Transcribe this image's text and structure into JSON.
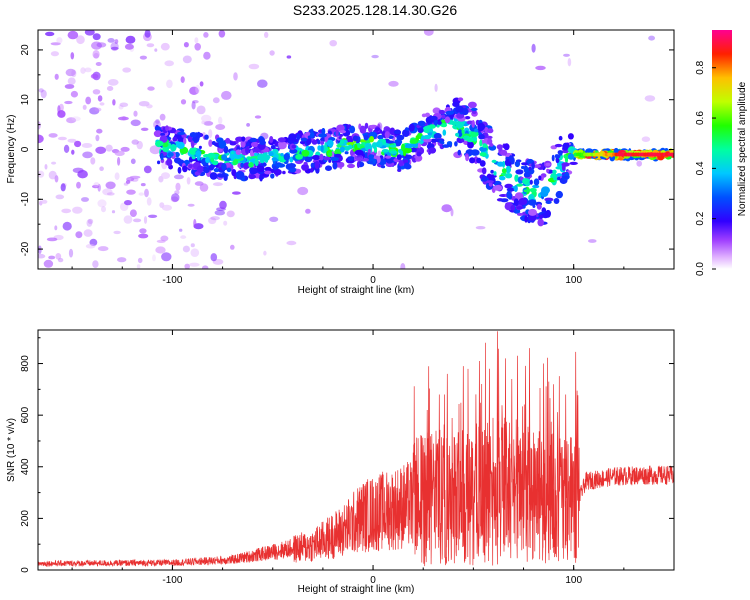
{
  "title": "S233.2025.128.14.30.G26",
  "chart_data": [
    {
      "type": "heatmap",
      "xlabel": "Height of straight line (km)",
      "ylabel": "Frequency (Hz)",
      "xlim": [
        -167,
        150
      ],
      "ylim": [
        -24,
        24
      ],
      "xticks": [
        "-100",
        "0",
        "100"
      ],
      "yticks": [
        "20",
        "10",
        "0",
        "-10",
        "-20"
      ],
      "colorbar": {
        "label": "Normalized spectral amplitude",
        "range": [
          0,
          0.95
        ],
        "ticks": [
          "0.0",
          "0.2",
          "0.4",
          "0.6",
          "0.8"
        ],
        "colors": [
          "#ffffff",
          "#d080ff",
          "#7000ff",
          "#0000ff",
          "#00a0ff",
          "#00ffd0",
          "#00ff00",
          "#a0ff00",
          "#ffff00",
          "#ffa000",
          "#ff0000",
          "#ff00a0"
        ]
      },
      "ridge": [
        {
          "x": -105,
          "y": 0.5
        },
        {
          "x": -80,
          "y": -1.5
        },
        {
          "x": -60,
          "y": -2
        },
        {
          "x": -40,
          "y": -1
        },
        {
          "x": -25,
          "y": 0
        },
        {
          "x": -15,
          "y": 0.5
        },
        {
          "x": 0,
          "y": 1
        },
        {
          "x": 15,
          "y": -0.5
        },
        {
          "x": 25,
          "y": 3
        },
        {
          "x": 40,
          "y": 5
        },
        {
          "x": 50,
          "y": 3
        },
        {
          "x": 60,
          "y": -3
        },
        {
          "x": 75,
          "y": -8
        },
        {
          "x": 85,
          "y": -9
        },
        {
          "x": 95,
          "y": -2
        },
        {
          "x": 100,
          "y": -1
        },
        {
          "x": 150,
          "y": -1
        }
      ]
    },
    {
      "type": "line",
      "xlabel": "Height of straight line (km)",
      "ylabel": "SNR (10 * v/v)",
      "xlim": [
        -167,
        150
      ],
      "ylim": [
        0,
        930
      ],
      "xticks": [
        "-100",
        "0",
        "100"
      ],
      "yticks": [
        "0",
        "200",
        "400",
        "600",
        "800"
      ],
      "color": "#e83030",
      "envelope": [
        {
          "x": -167,
          "y": 25
        },
        {
          "x": -100,
          "y": 28
        },
        {
          "x": -70,
          "y": 40
        },
        {
          "x": -50,
          "y": 70
        },
        {
          "x": -30,
          "y": 100
        },
        {
          "x": -15,
          "y": 160
        },
        {
          "x": -5,
          "y": 220
        },
        {
          "x": 5,
          "y": 240
        },
        {
          "x": 15,
          "y": 260
        },
        {
          "x": 25,
          "y": 280
        },
        {
          "x": 35,
          "y": 290
        },
        {
          "x": 50,
          "y": 300
        },
        {
          "x": 65,
          "y": 320
        },
        {
          "x": 80,
          "y": 290
        },
        {
          "x": 95,
          "y": 280
        },
        {
          "x": 102,
          "y": 270
        },
        {
          "x": 106,
          "y": 350
        },
        {
          "x": 120,
          "y": 370
        },
        {
          "x": 135,
          "y": 375
        },
        {
          "x": 150,
          "y": 375
        }
      ],
      "peaks": [
        {
          "x": 27,
          "y": 620
        },
        {
          "x": 33,
          "y": 680
        },
        {
          "x": 37,
          "y": 760
        },
        {
          "x": 45,
          "y": 790
        },
        {
          "x": 53,
          "y": 810
        },
        {
          "x": 58,
          "y": 780
        },
        {
          "x": 62,
          "y": 925
        },
        {
          "x": 66,
          "y": 820
        },
        {
          "x": 72,
          "y": 830
        },
        {
          "x": 78,
          "y": 860
        },
        {
          "x": 85,
          "y": 800
        },
        {
          "x": 90,
          "y": 720
        },
        {
          "x": 96,
          "y": 680
        },
        {
          "x": 101,
          "y": 845
        }
      ]
    }
  ]
}
